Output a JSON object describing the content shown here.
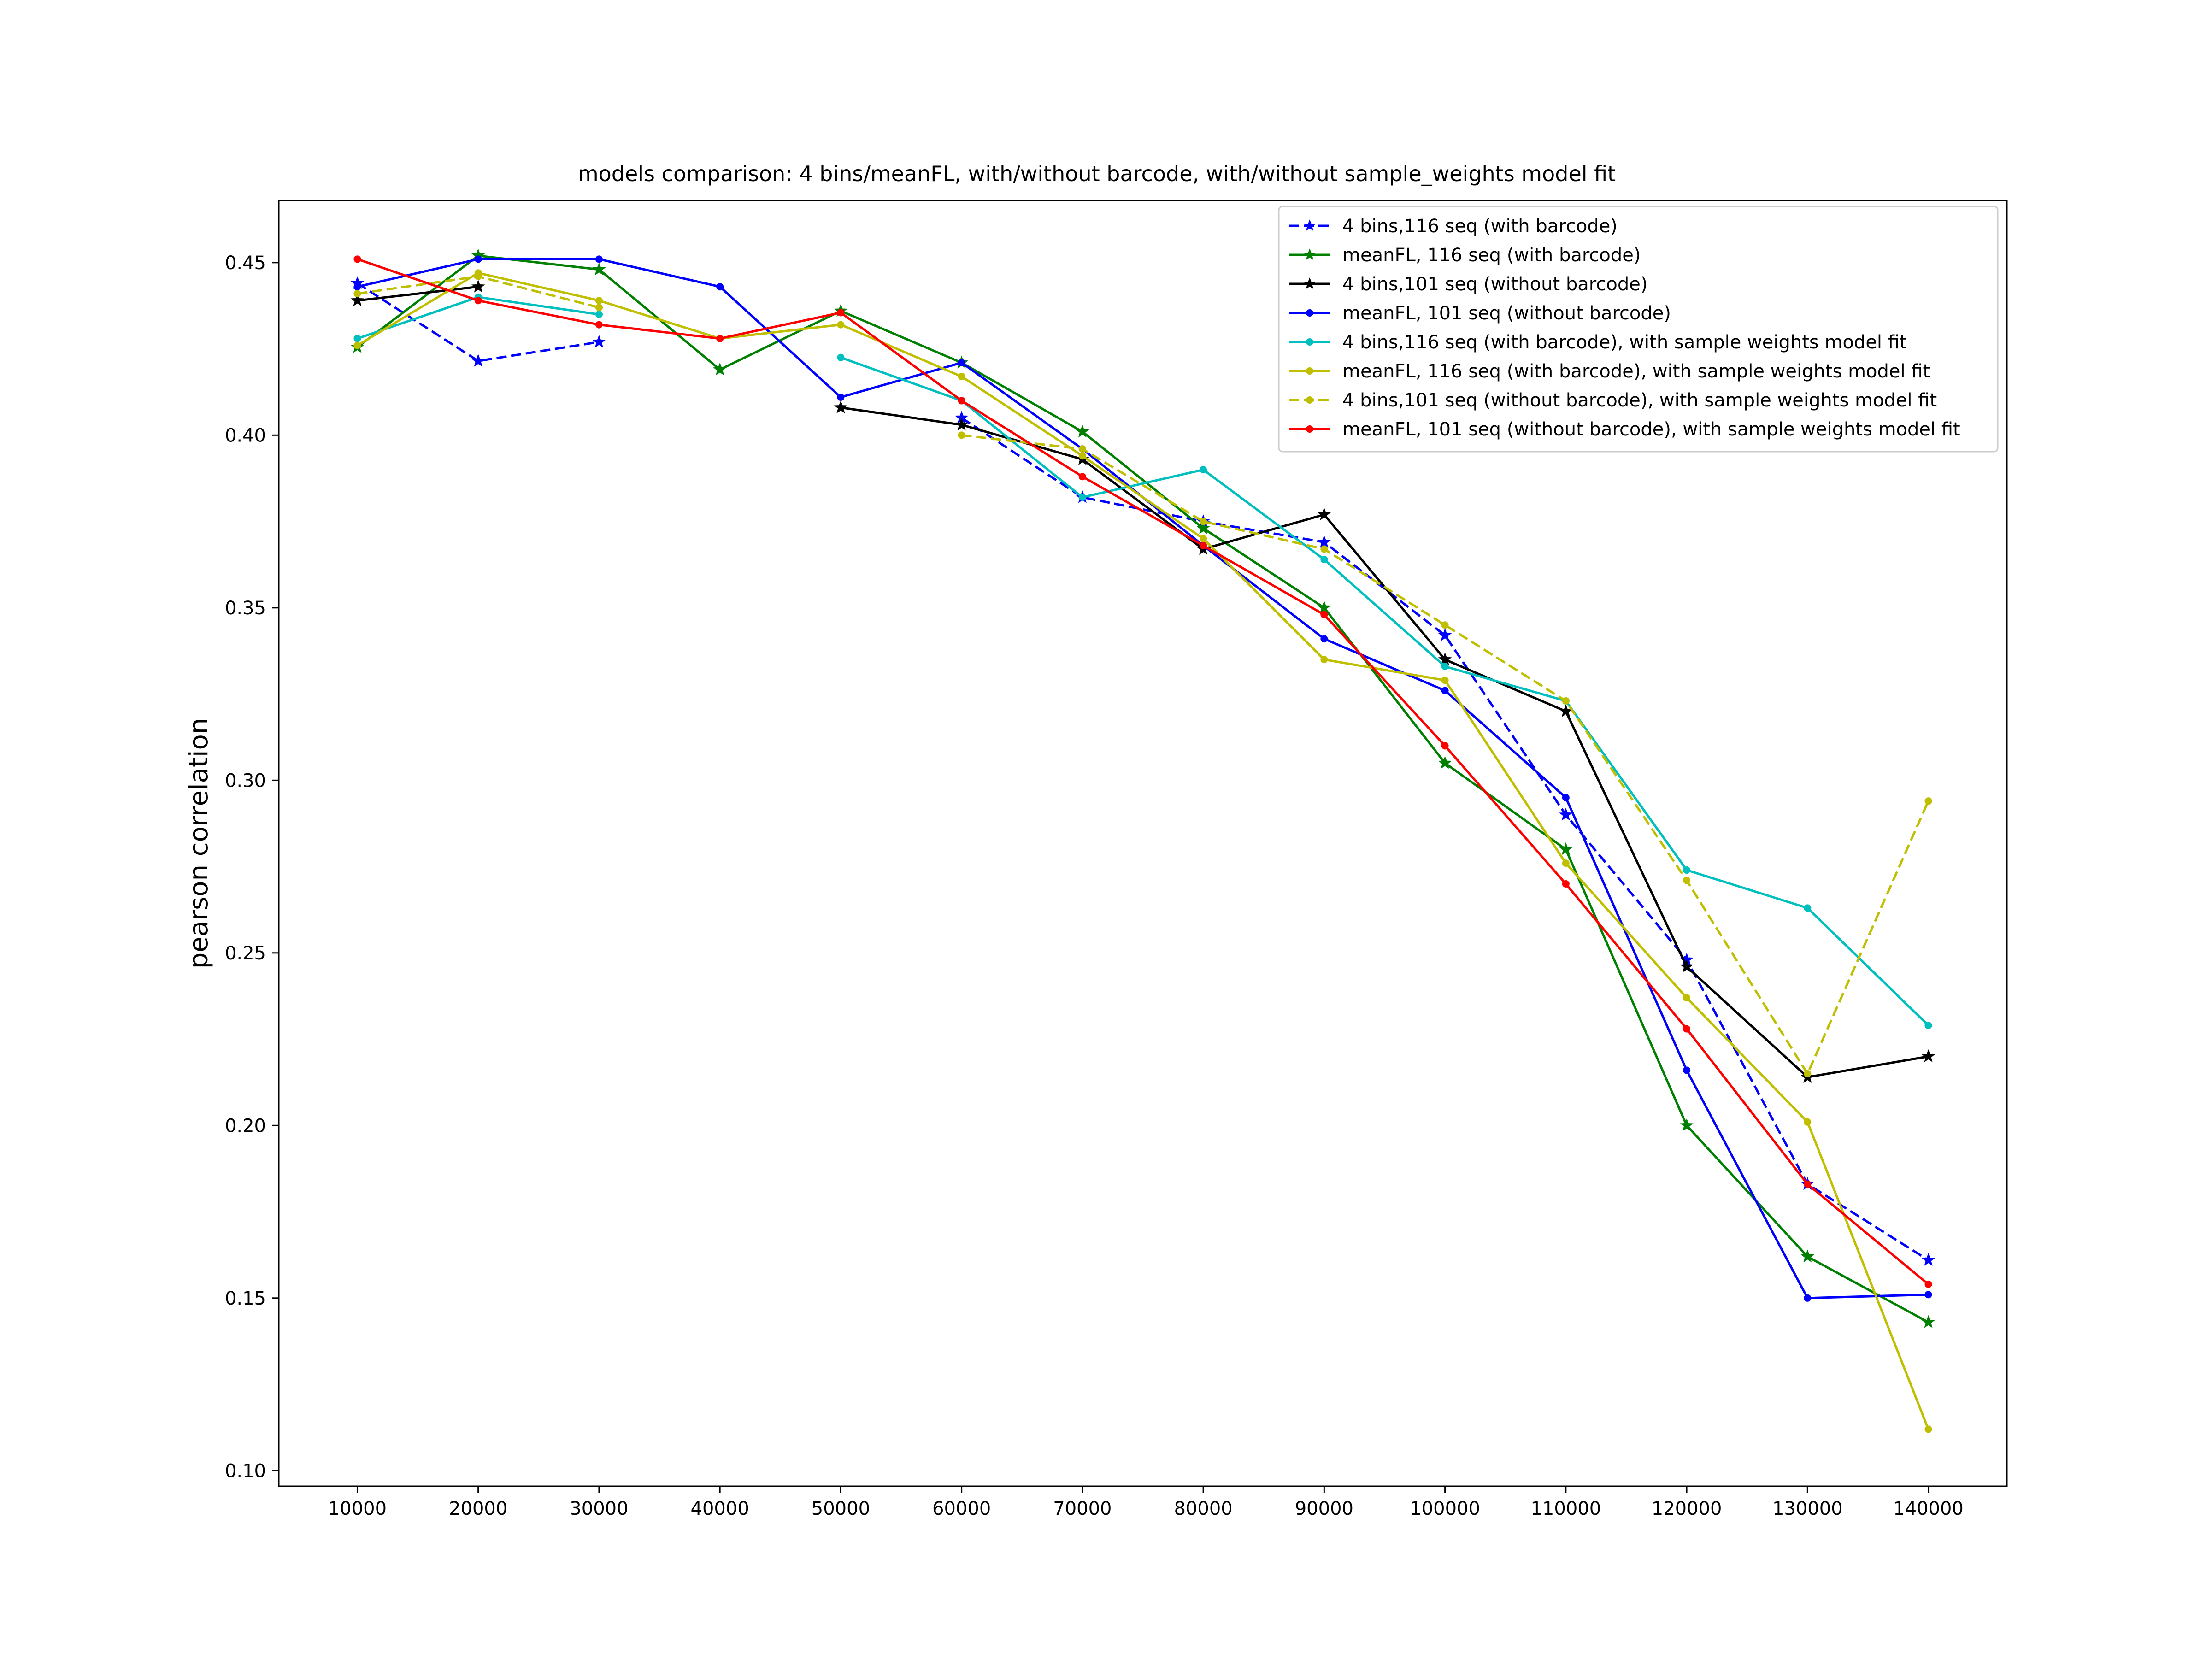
{
  "chart_data": {
    "type": "line",
    "title": "models comparison: 4 bins/meanFL, with/without barcode, with/without sample_weights model fit",
    "xlabel": "",
    "ylabel": "pearson correlation",
    "x_ticks": [
      "10000",
      "20000",
      "30000",
      "40000",
      "50000",
      "60000",
      "70000",
      "80000",
      "90000",
      "100000",
      "110000",
      "120000",
      "130000",
      "140000"
    ],
    "y_ticks": [
      "0.10",
      "0.15",
      "0.20",
      "0.25",
      "0.30",
      "0.35",
      "0.40",
      "0.45"
    ],
    "xlim": [
      3500,
      146500
    ],
    "ylim": [
      0.0955,
      0.468
    ],
    "grid": false,
    "legend_position": "top-right",
    "series": [
      {
        "name": "4 bins,116 seq (with barcode)",
        "color": "#0000ff",
        "dash": "dashed",
        "marker": "star",
        "x": [
          10000,
          20000,
          30000,
          null,
          null,
          60000,
          70000,
          80000,
          90000,
          100000,
          110000,
          120000,
          130000,
          140000
        ],
        "y": [
          0.444,
          0.4215,
          0.427,
          null,
          null,
          0.405,
          0.382,
          0.375,
          0.369,
          0.342,
          0.29,
          0.248,
          0.183,
          0.161
        ]
      },
      {
        "name": "meanFL, 116 seq (with barcode)",
        "color": "#008000",
        "dash": "solid",
        "marker": "star",
        "x": [
          10000,
          20000,
          30000,
          40000,
          50000,
          60000,
          70000,
          80000,
          90000,
          100000,
          110000,
          120000,
          130000,
          140000
        ],
        "y": [
          0.4255,
          0.452,
          0.448,
          0.419,
          0.436,
          0.421,
          0.401,
          0.373,
          0.35,
          0.305,
          0.28,
          0.2,
          0.162,
          0.143
        ]
      },
      {
        "name": "4 bins,101 seq (without barcode)",
        "color": "#000000",
        "dash": "solid",
        "marker": "star",
        "x": [
          10000,
          20000,
          null,
          null,
          50000,
          60000,
          70000,
          80000,
          90000,
          100000,
          110000,
          120000,
          130000,
          140000
        ],
        "y": [
          0.439,
          0.443,
          null,
          null,
          0.408,
          0.403,
          0.393,
          0.367,
          0.377,
          0.335,
          0.32,
          0.246,
          0.214,
          0.22
        ]
      },
      {
        "name": "meanFL, 101 seq (without barcode)",
        "color": "#0000ff",
        "dash": "solid",
        "marker": "dot",
        "x": [
          10000,
          20000,
          30000,
          40000,
          50000,
          60000,
          70000,
          80000,
          90000,
          100000,
          110000,
          120000,
          130000,
          140000
        ],
        "y": [
          0.443,
          0.451,
          0.451,
          0.443,
          0.411,
          0.421,
          0.396,
          0.368,
          0.341,
          0.326,
          0.295,
          0.216,
          0.15,
          0.151
        ]
      },
      {
        "name": "4 bins,116 seq (with barcode), with sample weights model fit",
        "color": "#00bfbf",
        "dash": "solid",
        "marker": "dot",
        "x": [
          10000,
          20000,
          30000,
          null,
          50000,
          60000,
          70000,
          80000,
          90000,
          100000,
          110000,
          120000,
          130000,
          140000
        ],
        "y": [
          0.428,
          0.44,
          0.435,
          null,
          0.4225,
          0.41,
          0.382,
          0.39,
          0.364,
          0.333,
          0.323,
          0.274,
          0.263,
          0.229
        ]
      },
      {
        "name": "meanFL, 116 seq (with barcode), with sample weights model fit",
        "color": "#bfbf00",
        "dash": "solid",
        "marker": "dot",
        "x": [
          10000,
          20000,
          30000,
          40000,
          50000,
          60000,
          70000,
          80000,
          90000,
          100000,
          110000,
          120000,
          130000,
          140000
        ],
        "y": [
          0.426,
          0.447,
          0.439,
          0.428,
          0.432,
          0.417,
          0.394,
          0.37,
          0.335,
          0.329,
          0.276,
          0.237,
          0.201,
          0.112
        ]
      },
      {
        "name": "4 bins,101 seq (without barcode), with sample weights model fit",
        "color": "#bfbf00",
        "dash": "dashed",
        "marker": "dot",
        "x": [
          10000,
          20000,
          30000,
          null,
          null,
          60000,
          70000,
          80000,
          90000,
          100000,
          110000,
          120000,
          130000,
          140000
        ],
        "y": [
          0.441,
          0.446,
          0.437,
          null,
          null,
          0.4,
          0.396,
          0.375,
          0.367,
          0.345,
          0.323,
          0.271,
          0.215,
          0.294
        ]
      },
      {
        "name": "meanFL, 101 seq (without barcode), with sample weights model fit",
        "color": "#ff0000",
        "dash": "solid",
        "marker": "dot",
        "x": [
          10000,
          20000,
          30000,
          40000,
          50000,
          60000,
          70000,
          80000,
          90000,
          100000,
          110000,
          120000,
          130000,
          140000
        ],
        "y": [
          0.451,
          0.439,
          0.432,
          0.428,
          0.4355,
          0.41,
          0.388,
          0.368,
          0.348,
          0.31,
          0.27,
          0.228,
          0.183,
          0.154
        ]
      }
    ]
  }
}
